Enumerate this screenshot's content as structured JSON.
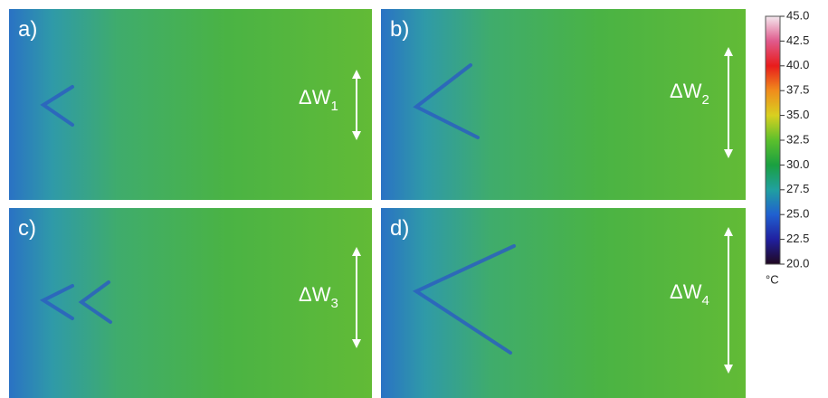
{
  "panels": [
    {
      "label": "a)",
      "annotation": {
        "symbol": "ΔW",
        "subscript": "1"
      }
    },
    {
      "label": "b)",
      "annotation": {
        "symbol": "ΔW",
        "subscript": "2"
      }
    },
    {
      "label": "c)",
      "annotation": {
        "symbol": "ΔW",
        "subscript": "3"
      }
    },
    {
      "label": "d)",
      "annotation": {
        "symbol": "ΔW",
        "subscript": "4"
      }
    }
  ],
  "colorbar": {
    "ticks": [
      {
        "value": 45,
        "label": "45.0"
      },
      {
        "value": 42.5,
        "label": "42.5"
      },
      {
        "value": 40,
        "label": "40.0"
      },
      {
        "value": 37.5,
        "label": "37.5"
      },
      {
        "value": 35,
        "label": "35.0"
      },
      {
        "value": 32.5,
        "label": "32.5"
      },
      {
        "value": 30,
        "label": "30.0"
      },
      {
        "value": 27.5,
        "label": "27.5"
      },
      {
        "value": 25,
        "label": "25.0"
      },
      {
        "value": 22.5,
        "label": "22.5"
      },
      {
        "value": 20,
        "label": "20.0"
      }
    ],
    "unit": "°C"
  }
}
